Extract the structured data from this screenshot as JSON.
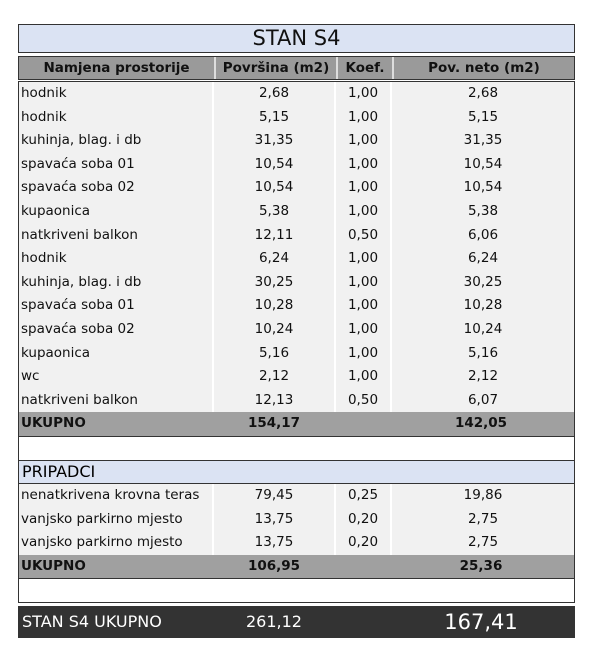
{
  "title": "STAN S4",
  "headers": [
    "Namjena prostorije",
    "Površina (m2)",
    "Koef.",
    "Pov. neto (m2)"
  ],
  "rooms": [
    [
      "hodnik",
      "2,68",
      "1,00",
      "2,68"
    ],
    [
      "hodnik",
      "5,15",
      "1,00",
      "5,15"
    ],
    [
      "kuhinja, blag. i db",
      "31,35",
      "1,00",
      "31,35"
    ],
    [
      "spavaća soba 01",
      "10,54",
      "1,00",
      "10,54"
    ],
    [
      "spavaća soba 02",
      "10,54",
      "1,00",
      "10,54"
    ],
    [
      "kupaonica",
      "5,38",
      "1,00",
      "5,38"
    ],
    [
      "natkriveni balkon",
      "12,11",
      "0,50",
      "6,06"
    ],
    [
      "hodnik",
      "6,24",
      "1,00",
      "6,24"
    ],
    [
      "kuhinja, blag. i db",
      "30,25",
      "1,00",
      "30,25"
    ],
    [
      "spavaća soba 01",
      "10,28",
      "1,00",
      "10,28"
    ],
    [
      "spavaća soba 02",
      "10,24",
      "1,00",
      "10,24"
    ],
    [
      "kupaonica",
      "5,16",
      "1,00",
      "5,16"
    ],
    [
      "wc",
      "2,12",
      "1,00",
      "2,12"
    ],
    [
      "natkriveni balkon",
      "12,13",
      "0,50",
      "6,07"
    ]
  ],
  "rooms_total": {
    "label": "UKUPNO",
    "area": "154,17",
    "net": "142,05"
  },
  "pripadci_title": "PRIPADCI",
  "pripadci": [
    [
      "nenatkrivena krovna teras",
      "79,45",
      "0,25",
      "19,86"
    ],
    [
      "vanjsko parkirno mjesto",
      "13,75",
      "0,20",
      "2,75"
    ],
    [
      "vanjsko parkirno mjesto",
      "13,75",
      "0,20",
      "2,75"
    ]
  ],
  "pripadci_total": {
    "label": "UKUPNO",
    "area": "106,95",
    "net": "25,36"
  },
  "grand_total": {
    "label": "STAN S4 UKUPNO",
    "area": "261,12",
    "net": "167,41"
  }
}
